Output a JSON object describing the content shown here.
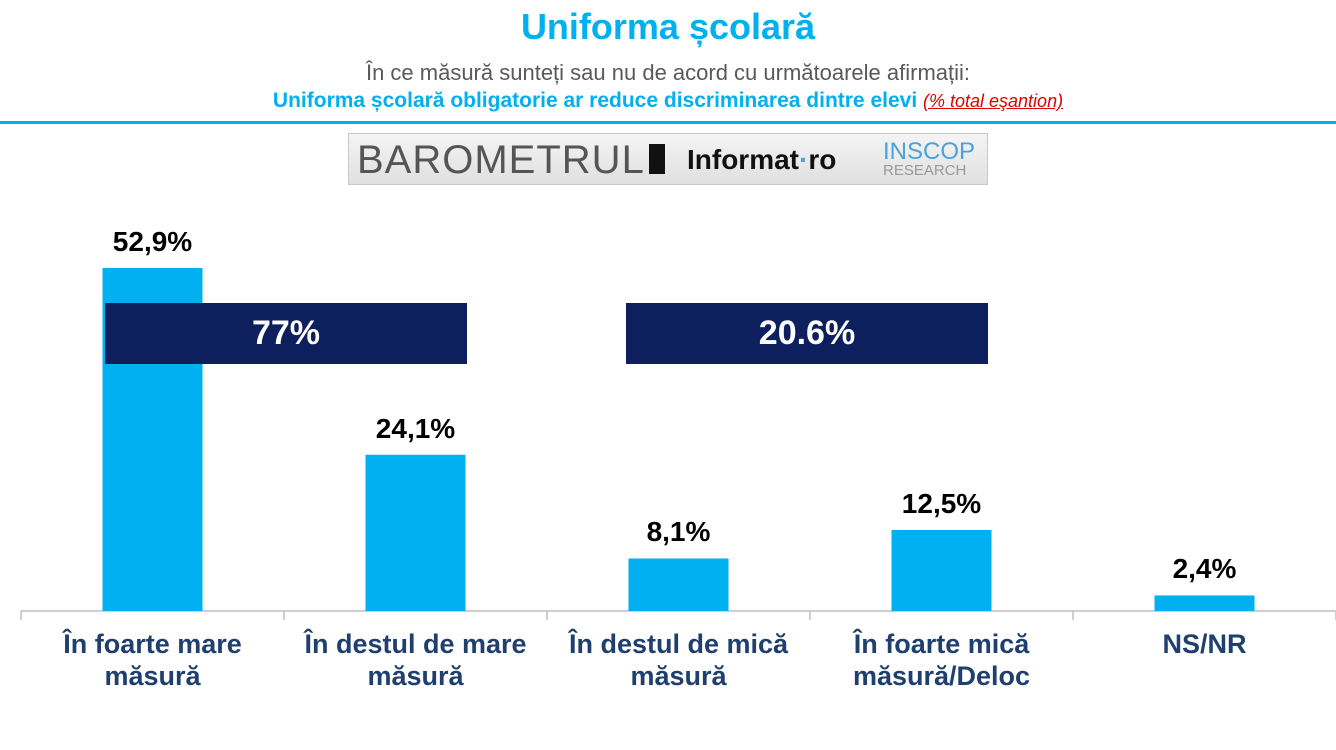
{
  "chart_data": {
    "type": "bar",
    "title": "Uniforma școlară",
    "subtitle": "În ce măsură sunteți sau nu de acord cu următoarele afirmații:",
    "question": "Uniforma școlară obligatorie ar reduce discriminarea dintre elevi",
    "note": "(% total eşantion)",
    "logo": {
      "barometer": "BAROMETRUL",
      "informat": "Informat",
      "informat_suffix": "ro",
      "inscop": "INSCOP",
      "research": "RESEARCH"
    },
    "categories": [
      "În foarte mare măsură",
      "În destul de mare măsură",
      "În destul de mică măsură",
      "În foarte mică măsură/Deloc",
      "NS/NR"
    ],
    "values": [
      52.9,
      24.1,
      8.1,
      12.5,
      2.4
    ],
    "value_labels": [
      "52,9%",
      "24,1%",
      "8,1%",
      "12,5%",
      "2,4%"
    ],
    "color": "#00b0f0",
    "annotations": [
      "77%",
      "20.6%"
    ]
  }
}
